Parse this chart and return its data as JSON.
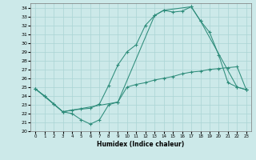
{
  "title": "",
  "xlabel": "Humidex (Indice chaleur)",
  "bg_color": "#cce9e9",
  "grid_color": "#aad4d4",
  "line_color": "#2d8c7a",
  "xlim": [
    -0.5,
    23.5
  ],
  "ylim": [
    20,
    34.5
  ],
  "xticks": [
    0,
    1,
    2,
    3,
    4,
    5,
    6,
    7,
    8,
    9,
    10,
    11,
    12,
    13,
    14,
    15,
    16,
    17,
    18,
    19,
    20,
    21,
    22,
    23
  ],
  "yticks": [
    20,
    21,
    22,
    23,
    24,
    25,
    26,
    27,
    28,
    29,
    30,
    31,
    32,
    33,
    34
  ],
  "series1_x": [
    0,
    1,
    2,
    3,
    4,
    5,
    6,
    7,
    8,
    9,
    10,
    11,
    12,
    13,
    14,
    15,
    16,
    17,
    18,
    19,
    20,
    21,
    22,
    23
  ],
  "series1_y": [
    24.8,
    24.0,
    23.1,
    22.2,
    22.0,
    21.3,
    20.8,
    21.3,
    23.0,
    23.3,
    25.0,
    25.3,
    25.5,
    25.8,
    26.0,
    26.2,
    26.5,
    26.7,
    26.8,
    27.0,
    27.1,
    27.2,
    27.3,
    24.7
  ],
  "series2_x": [
    0,
    1,
    2,
    3,
    4,
    5,
    6,
    7,
    8,
    9,
    10,
    11,
    12,
    13,
    14,
    15,
    16,
    17,
    18,
    19,
    20,
    21,
    22,
    23
  ],
  "series2_y": [
    24.8,
    24.0,
    23.1,
    22.2,
    22.4,
    22.5,
    22.6,
    23.1,
    25.2,
    27.5,
    29.0,
    29.8,
    32.0,
    33.1,
    33.7,
    33.5,
    33.6,
    34.1,
    32.5,
    31.2,
    28.6,
    25.5,
    25.0,
    24.7
  ],
  "series3_x": [
    0,
    3,
    9,
    13,
    14,
    17,
    18,
    22,
    23
  ],
  "series3_y": [
    24.8,
    22.2,
    23.3,
    33.1,
    33.7,
    34.1,
    32.5,
    25.0,
    24.7
  ]
}
